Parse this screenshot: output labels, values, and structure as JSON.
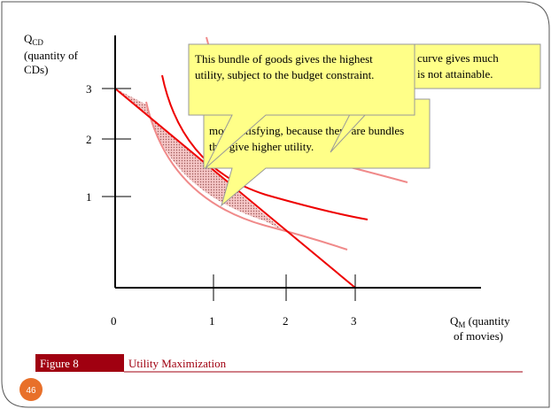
{
  "y_axis": {
    "symbol": "Q",
    "subscript": "CD",
    "caption_1": "(quantity of",
    "caption_2": "CDs)",
    "ticks": [
      "3",
      "2",
      "1"
    ]
  },
  "x_axis": {
    "symbol": "Q",
    "subscript": "M",
    "caption_1": " (quantity",
    "caption_2": "of movies)",
    "ticks": [
      "0",
      "1",
      "2",
      "3"
    ]
  },
  "callouts": [
    {
      "lines": [
        "more satisfying, because there are bundles",
        "that give higher utility."
      ]
    },
    {
      "lines": [
        "This bundle of goods gives the highest",
        "utility, subject to the budget constraint."
      ]
    },
    {
      "lines": [
        "curve gives much",
        "is not attainable."
      ]
    }
  ],
  "figure": {
    "number": "Figure 8",
    "title": "Utility Maximization"
  },
  "page_number": "46"
}
